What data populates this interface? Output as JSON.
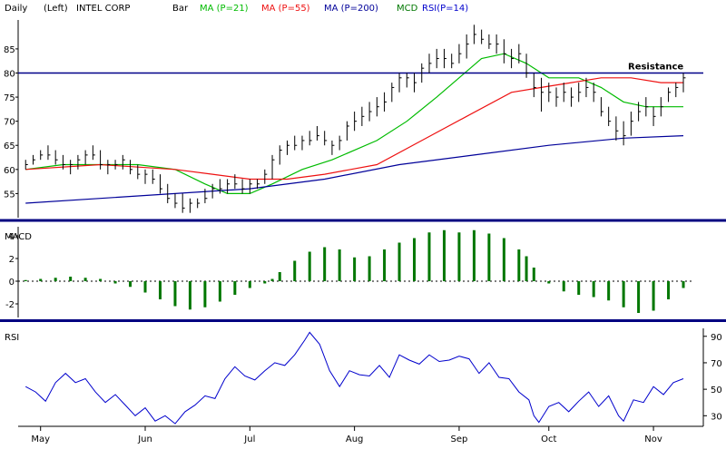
{
  "header": {
    "period": "Daily",
    "scale": "(Left)",
    "symbol_name": "INTEL CORP",
    "chart_style": "Bar",
    "ma21_label": "MA (P=21)",
    "ma55_label": "MA (P=55)",
    "ma200_label": "MA (P=200)",
    "mcd_label": "MCD",
    "rsi_legend": "RSI(P=14)"
  },
  "colors": {
    "price_bar": "#000000",
    "ma21": "#00bb00",
    "ma55": "#ee1111",
    "ma200": "#000099",
    "mcd_text": "#007700",
    "macd_bar": "#007700",
    "rsi_line": "#0000cc",
    "resistance_line": "#000088",
    "panel_divider": "#000080"
  },
  "chart_data": [
    {
      "type": "line",
      "panel": "price",
      "ylim": [
        50,
        91
      ],
      "y_ticks": [
        55,
        60,
        65,
        70,
        75,
        80,
        85
      ],
      "grid": false,
      "legend": "top",
      "annotation": "Resistance",
      "resistance_level": 80,
      "price_bars": [
        [
          0,
          62,
          60,
          61
        ],
        [
          3,
          63,
          61,
          62
        ],
        [
          6,
          64,
          62,
          63
        ],
        [
          9,
          65,
          62,
          63
        ],
        [
          12,
          64,
          61,
          62
        ],
        [
          15,
          63,
          60,
          61
        ],
        [
          18,
          62,
          59,
          61
        ],
        [
          21,
          63,
          60,
          62
        ],
        [
          24,
          64,
          61,
          63
        ],
        [
          27,
          65,
          62,
          63
        ],
        [
          30,
          64,
          60,
          61
        ],
        [
          33,
          62,
          59,
          61
        ],
        [
          36,
          62,
          60,
          61
        ],
        [
          39,
          63,
          60,
          62
        ],
        [
          42,
          62,
          59,
          60
        ],
        [
          45,
          61,
          58,
          59
        ],
        [
          48,
          60,
          57,
          59
        ],
        [
          51,
          60,
          57,
          58
        ],
        [
          54,
          59,
          55,
          56
        ],
        [
          57,
          57,
          53,
          54
        ],
        [
          60,
          55,
          52,
          53
        ],
        [
          63,
          55,
          51,
          52
        ],
        [
          66,
          54,
          51,
          53
        ],
        [
          69,
          54,
          52,
          53
        ],
        [
          72,
          56,
          53,
          54
        ],
        [
          75,
          57,
          54,
          56
        ],
        [
          78,
          58,
          55,
          56
        ],
        [
          81,
          58,
          55,
          57
        ],
        [
          84,
          59,
          56,
          57
        ],
        [
          87,
          58,
          55,
          56
        ],
        [
          90,
          58,
          55,
          57
        ],
        [
          93,
          58,
          56,
          57
        ],
        [
          96,
          60,
          57,
          59
        ],
        [
          99,
          63,
          58,
          62
        ],
        [
          102,
          65,
          61,
          64
        ],
        [
          105,
          66,
          63,
          65
        ],
        [
          108,
          67,
          64,
          65
        ],
        [
          111,
          67,
          64,
          66
        ],
        [
          114,
          68,
          65,
          66
        ],
        [
          117,
          69,
          66,
          67
        ],
        [
          120,
          68,
          65,
          66
        ],
        [
          123,
          66,
          63,
          65
        ],
        [
          126,
          67,
          64,
          66
        ],
        [
          129,
          70,
          66,
          69
        ],
        [
          132,
          72,
          68,
          70
        ],
        [
          135,
          73,
          69,
          71
        ],
        [
          138,
          74,
          70,
          72
        ],
        [
          141,
          75,
          71,
          73
        ],
        [
          144,
          76,
          72,
          74
        ],
        [
          147,
          78,
          74,
          77
        ],
        [
          150,
          80,
          76,
          79
        ],
        [
          153,
          80,
          77,
          79
        ],
        [
          156,
          80,
          76,
          78
        ],
        [
          159,
          82,
          78,
          81
        ],
        [
          162,
          84,
          80,
          82
        ],
        [
          165,
          85,
          81,
          83
        ],
        [
          168,
          85,
          81,
          83
        ],
        [
          171,
          84,
          81,
          82
        ],
        [
          174,
          86,
          82,
          84
        ],
        [
          177,
          88,
          83,
          86
        ],
        [
          180,
          90,
          86,
          88
        ],
        [
          183,
          89,
          86,
          87
        ],
        [
          186,
          88,
          85,
          86
        ],
        [
          189,
          88,
          84,
          86
        ],
        [
          192,
          87,
          82,
          84
        ],
        [
          195,
          85,
          81,
          83
        ],
        [
          198,
          86,
          82,
          84
        ],
        [
          201,
          84,
          79,
          80
        ],
        [
          204,
          80,
          75,
          77
        ],
        [
          207,
          79,
          72,
          76
        ],
        [
          210,
          78,
          74,
          76
        ],
        [
          213,
          77,
          73,
          75
        ],
        [
          216,
          78,
          74,
          76
        ],
        [
          219,
          77,
          73,
          75
        ],
        [
          222,
          78,
          74,
          76
        ],
        [
          225,
          79,
          75,
          77
        ],
        [
          228,
          78,
          74,
          76
        ],
        [
          231,
          75,
          71,
          72
        ],
        [
          234,
          73,
          69,
          70
        ],
        [
          237,
          71,
          66,
          68
        ],
        [
          240,
          70,
          65,
          67
        ],
        [
          243,
          72,
          67,
          70
        ],
        [
          246,
          74,
          70,
          72
        ],
        [
          249,
          75,
          71,
          73
        ],
        [
          252,
          73,
          69,
          71
        ],
        [
          255,
          75,
          71,
          73
        ],
        [
          258,
          77,
          74,
          76
        ],
        [
          261,
          78,
          75,
          77
        ],
        [
          264,
          80,
          76,
          79
        ]
      ],
      "series": [
        {
          "name": "MA (P=21)",
          "x": [
            0,
            15,
            30,
            45,
            60,
            72,
            81,
            90,
            99,
            111,
            123,
            141,
            153,
            165,
            174,
            183,
            192,
            201,
            210,
            222,
            231,
            240,
            249,
            258,
            264
          ],
          "values": [
            60,
            61,
            61,
            61,
            60,
            57,
            55,
            55,
            57,
            60,
            62,
            66,
            70,
            75,
            79,
            83,
            84,
            82,
            79,
            79,
            77,
            74,
            73,
            73,
            73
          ]
        },
        {
          "name": "MA (P=55)",
          "x": [
            0,
            30,
            60,
            75,
            90,
            105,
            120,
            141,
            159,
            177,
            195,
            207,
            219,
            231,
            243,
            255,
            264
          ],
          "values": [
            60,
            61,
            60,
            59,
            58,
            58,
            59,
            61,
            66,
            71,
            76,
            77,
            78,
            79,
            79,
            78,
            78
          ]
        },
        {
          "name": "MA (P=200)",
          "x": [
            0,
            30,
            60,
            90,
            120,
            150,
            180,
            210,
            240,
            264
          ],
          "values": [
            53,
            54,
            55,
            56,
            58,
            61,
            63,
            65,
            66.5,
            67
          ]
        }
      ]
    },
    {
      "type": "bar",
      "panel": "macd",
      "title": "MACD",
      "ylim": [
        -3.2,
        4.8
      ],
      "y_ticks": [
        -2,
        0,
        2,
        4
      ],
      "zero_line": "dotted",
      "x": [
        0,
        6,
        12,
        18,
        24,
        30,
        36,
        42,
        48,
        54,
        60,
        66,
        72,
        78,
        84,
        90,
        96,
        99,
        102,
        108,
        114,
        120,
        126,
        132,
        138,
        144,
        150,
        156,
        162,
        168,
        174,
        180,
        186,
        192,
        198,
        201,
        204,
        210,
        216,
        222,
        228,
        234,
        240,
        246,
        252,
        258,
        264
      ],
      "values": [
        0.1,
        0.2,
        0.3,
        0.4,
        0.3,
        0.2,
        -0.2,
        -0.5,
        -1.0,
        -1.6,
        -2.2,
        -2.5,
        -2.3,
        -1.8,
        -1.2,
        -0.6,
        -0.2,
        0.2,
        0.8,
        1.8,
        2.6,
        3.0,
        2.8,
        2.1,
        2.2,
        2.8,
        3.4,
        3.8,
        4.3,
        4.5,
        4.3,
        4.5,
        4.2,
        3.8,
        2.8,
        2.2,
        1.2,
        -0.2,
        -0.9,
        -1.2,
        -1.4,
        -1.7,
        -2.3,
        -2.8,
        -2.6,
        -1.6,
        -0.6
      ]
    },
    {
      "type": "line",
      "panel": "rsi",
      "title": "RSI",
      "ylim": [
        22,
        96
      ],
      "y_ticks": [
        30,
        50,
        70,
        90
      ],
      "x": [
        0,
        4,
        8,
        12,
        16,
        20,
        24,
        28,
        32,
        36,
        40,
        44,
        48,
        52,
        56,
        60,
        64,
        68,
        72,
        76,
        80,
        84,
        88,
        92,
        96,
        100,
        104,
        108,
        112,
        114,
        118,
        122,
        126,
        130,
        134,
        138,
        142,
        146,
        150,
        154,
        158,
        162,
        166,
        170,
        174,
        178,
        182,
        186,
        190,
        194,
        198,
        202,
        204,
        206,
        210,
        214,
        218,
        222,
        226,
        230,
        234,
        238,
        240,
        244,
        248,
        252,
        256,
        260,
        264
      ],
      "values": [
        52,
        48,
        41,
        55,
        62,
        55,
        58,
        48,
        40,
        46,
        38,
        30,
        36,
        26,
        30,
        24,
        33,
        38,
        45,
        43,
        58,
        67,
        60,
        57,
        64,
        70,
        68,
        76,
        87,
        93,
        84,
        64,
        52,
        64,
        61,
        60,
        68,
        59,
        76,
        72,
        69,
        76,
        71,
        72,
        75,
        73,
        62,
        70,
        59,
        58,
        48,
        42,
        30,
        25,
        37,
        40,
        33,
        41,
        48,
        37,
        45,
        30,
        26,
        42,
        40,
        52,
        46,
        55,
        58
      ]
    }
  ],
  "x_axis": {
    "labels": [
      {
        "text": "May",
        "x": 6
      },
      {
        "text": "Jun",
        "x": 48
      },
      {
        "text": "Jul",
        "x": 90
      },
      {
        "text": "Aug",
        "x": 132
      },
      {
        "text": "Sep",
        "x": 174
      },
      {
        "text": "Oct",
        "x": 210
      },
      {
        "text": "Nov",
        "x": 252
      }
    ],
    "xlim": [
      -3,
      268
    ]
  }
}
